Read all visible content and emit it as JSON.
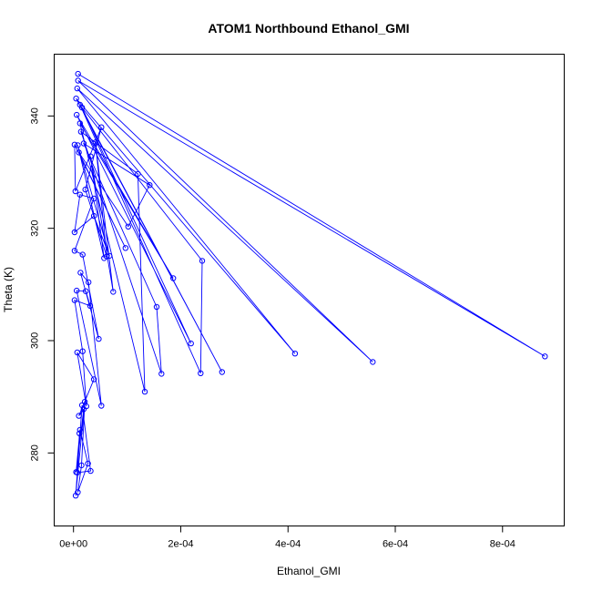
{
  "chart_data": {
    "type": "line",
    "title": "ATOM1 Northbound Ethanol_GMI",
    "xlabel": "Ethanol_GMI",
    "ylabel": "Theta (K)",
    "xlim": [
      -3.6e-05,
      0.000915
    ],
    "ylim": [
      267.0,
      351.0
    ],
    "x_ticks": [
      0,
      0.0002,
      0.0004,
      0.0006,
      0.0008
    ],
    "x_tick_labels": [
      "0e+00",
      "2e-04",
      "4e-04",
      "6e-04",
      "8e-04"
    ],
    "y_ticks": [
      280,
      300,
      320,
      340
    ],
    "y_tick_labels": [
      "280",
      "300",
      "320",
      "340"
    ],
    "grid": false,
    "legend": "none",
    "series": [
      {
        "color": "#0000ff",
        "marker": "open-circle",
        "x": [
          8.5e-06,
          0.000879,
          8.5e-06,
          0.000558,
          7e-06,
          0.000413,
          5e-06,
          0.000277,
          1.2e-05,
          0.000237,
          0.00024,
          1.6e-05,
          0.000219,
          6e-06,
          0.000186,
          1.2e-05,
          0.000133,
          0.00012,
          1.4e-05,
          0.000164,
          0.000155,
          1.9e-05,
          0.000142,
          0.000102,
          1e-05,
          9.7e-05,
          2e-06,
          3.5e-06,
          5.2e-05,
          2.2e-05,
          6.2e-05,
          4.1e-05,
          7.4e-05,
          3.2e-05,
          5.7e-05,
          8e-06,
          6.7e-05,
          3.8e-05,
          2e-06,
          1.2e-05,
          3.8e-05,
          2e-06,
          1.7e-05,
          4.7e-05,
          1.3e-05,
          2.8e-05,
          5.2e-05,
          6e-06,
          2.3e-05,
          3.1e-05,
          2e-06,
          1.7e-05,
          2.4e-05,
          7e-06,
          3.8e-05,
          1e-05,
          1.9e-05,
          5e-06,
          1.2e-05,
          2.7e-05,
          8e-06,
          1.5e-05,
          2.1e-05,
          4e-06,
          1.6e-05,
          3.2e-05,
          7e-06,
          1.1e-05
        ],
        "y": [
          347.5,
          297.2,
          346.3,
          296.2,
          344.9,
          297.7,
          343.1,
          294.4,
          342.0,
          294.2,
          314.2,
          341.5,
          299.5,
          340.2,
          311.1,
          338.7,
          290.9,
          329.7,
          337.2,
          294.1,
          306.0,
          335.1,
          327.7,
          320.3,
          333.5,
          316.5,
          334.9,
          326.6,
          338.0,
          326.9,
          315.0,
          335.3,
          308.7,
          332.8,
          314.7,
          334.8,
          315.1,
          322.2,
          319.3,
          326.0,
          325.3,
          316.0,
          315.3,
          300.3,
          312.1,
          310.4,
          288.4,
          308.9,
          308.8,
          306.2,
          307.2,
          298.1,
          288.3,
          297.9,
          293.1,
          286.6,
          287.8,
          276.6,
          284.1,
          278.1,
          273.0,
          277.8,
          289.1,
          272.4,
          288.5,
          276.8,
          276.5,
          283.5
        ]
      }
    ]
  }
}
